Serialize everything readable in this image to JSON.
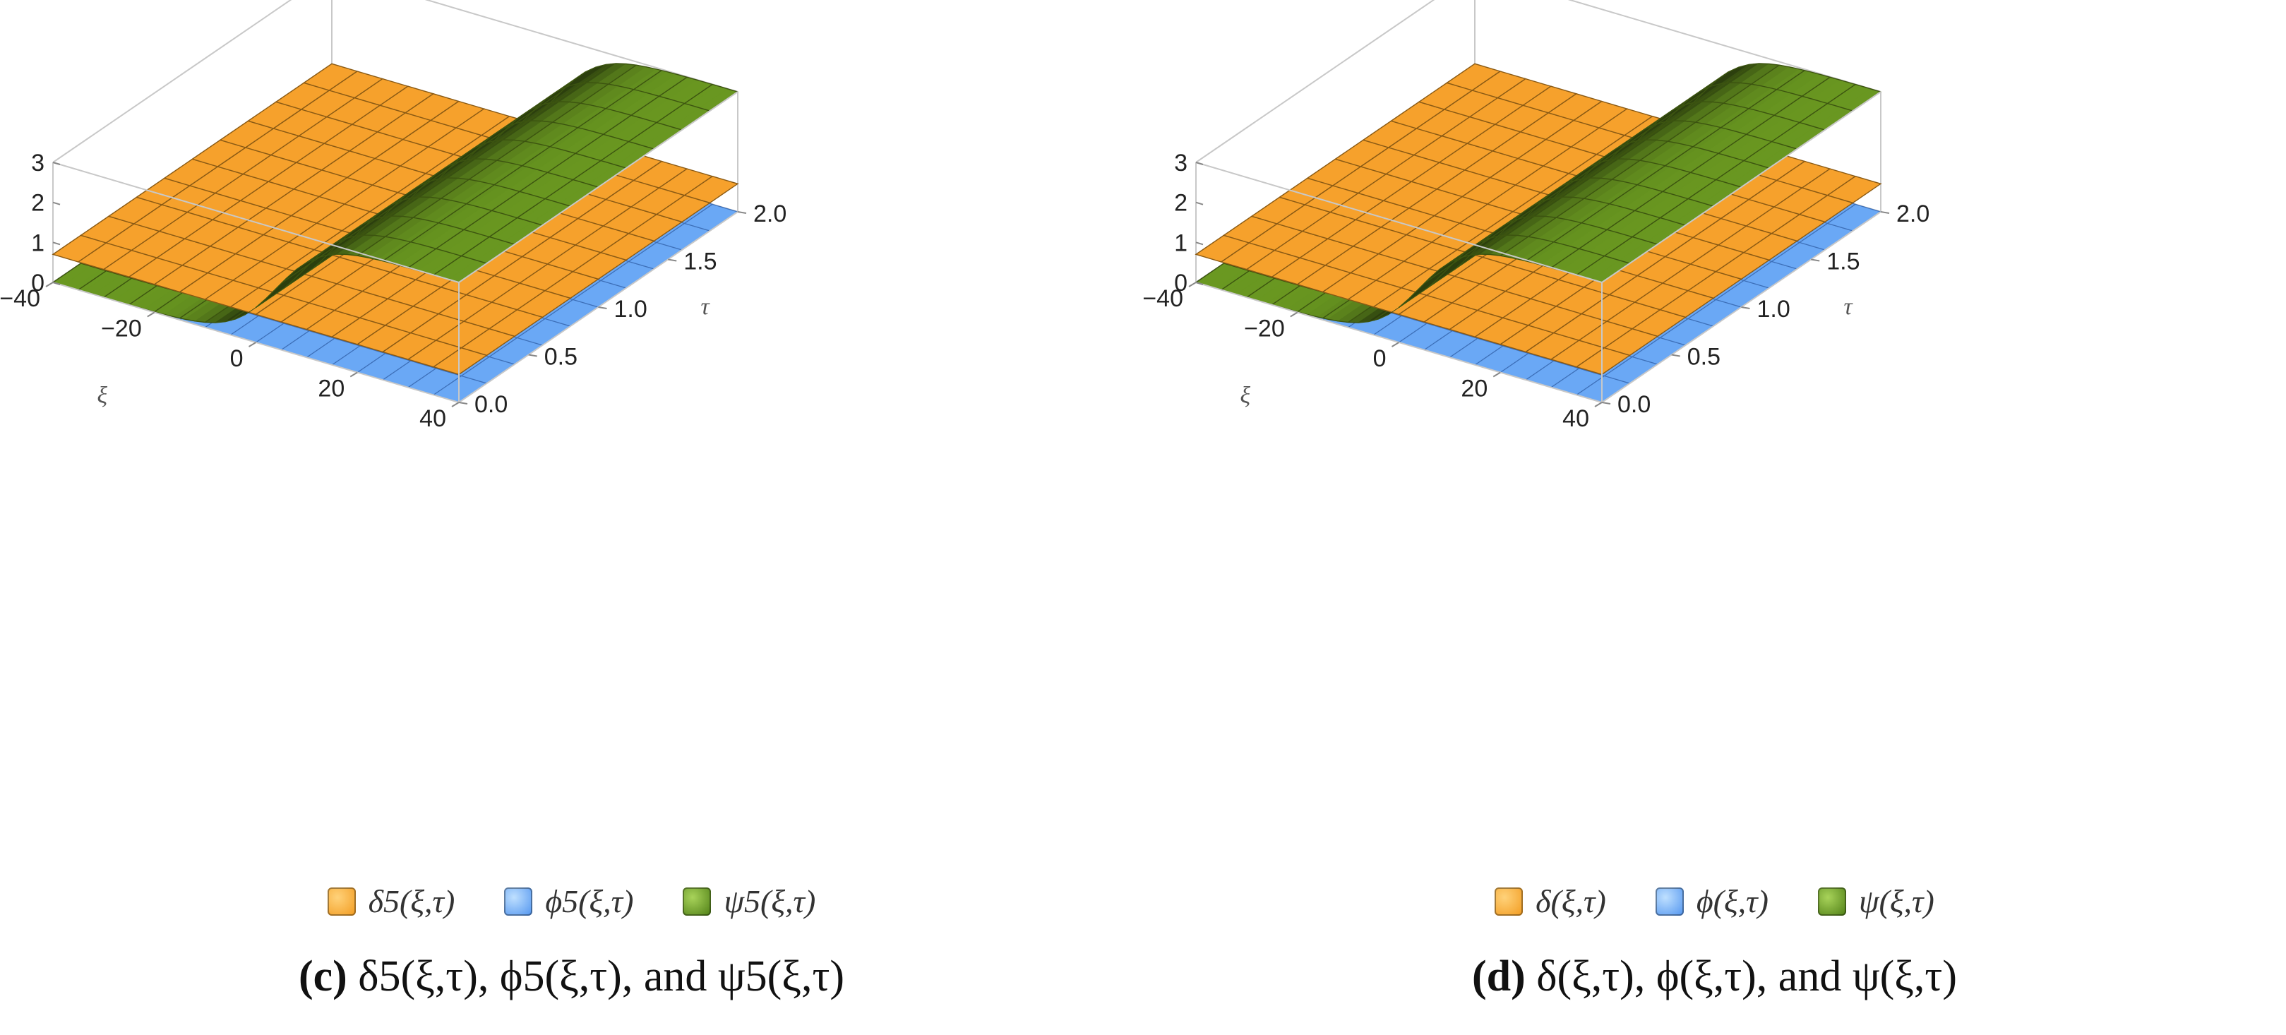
{
  "chart_data": [
    {
      "type": "surface3d",
      "panel_label": "(c)",
      "caption": "δ5(ξ,τ), ϕ5(ξ,τ), and ψ5(ξ,τ)",
      "xlabel": "ξ",
      "ylabel": "τ",
      "xlim": [
        -40,
        40
      ],
      "ylim": [
        0,
        2
      ],
      "zlim": [
        0,
        3
      ],
      "x_ticks": [
        "−40",
        "−20",
        "0",
        "20",
        "40"
      ],
      "y_ticks": [
        "0.0",
        "0.5",
        "1.0",
        "1.5",
        "2.0"
      ],
      "z_ticks": [
        "0",
        "1",
        "2",
        "3"
      ],
      "series": [
        {
          "name": "δ5(ξ,τ)",
          "color": "#f6a12c",
          "kind": "plane",
          "z": 0.7
        },
        {
          "name": "ϕ5(ξ,τ)",
          "color": "#6aa8f5",
          "kind": "plane",
          "z": 0.0
        },
        {
          "name": "ψ5(ξ,τ)",
          "color": "#6e9e22",
          "kind": "kink",
          "z_low": 0.0,
          "z_high": 3.0
        }
      ]
    },
    {
      "type": "surface3d",
      "panel_label": "(d)",
      "caption": "δ(ξ,τ), ϕ(ξ,τ), and ψ(ξ,τ)",
      "xlabel": "ξ",
      "ylabel": "τ",
      "xlim": [
        -40,
        40
      ],
      "ylim": [
        0,
        2
      ],
      "zlim": [
        0,
        3
      ],
      "x_ticks": [
        "−40",
        "−20",
        "0",
        "20",
        "40"
      ],
      "y_ticks": [
        "0.0",
        "0.5",
        "1.0",
        "1.5",
        "2.0"
      ],
      "z_ticks": [
        "0",
        "1",
        "2",
        "3"
      ],
      "series": [
        {
          "name": "δ(ξ,τ)",
          "color": "#f6a12c",
          "kind": "plane",
          "z": 0.7
        },
        {
          "name": "ϕ(ξ,τ)",
          "color": "#6aa8f5",
          "kind": "plane",
          "z": 0.0
        },
        {
          "name": "ψ(ξ,τ)",
          "color": "#6e9e22",
          "kind": "kink",
          "z_low": 0.0,
          "z_high": 3.0
        }
      ]
    }
  ]
}
